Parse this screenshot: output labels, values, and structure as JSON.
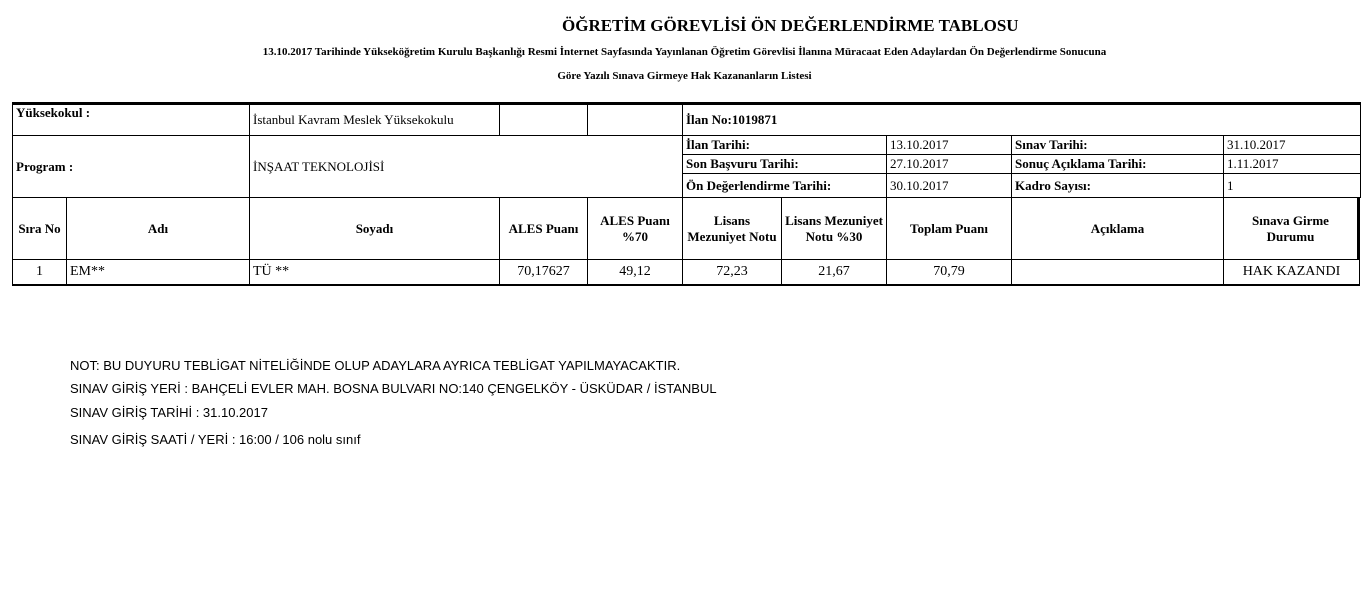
{
  "header": {
    "title": "ÖĞRETİM GÖREVLİSİ ÖN DEĞERLENDİRME TABLOSU",
    "subtitle1": "13.10.2017 Tarihinde Yükseköğretim Kurulu Başkanlığı Resmi İnternet Sayfasında Yayınlanan Öğretim Görevlisi İlanına Müracaat Eden Adaylardan Ön Değerlendirme Sonucuna",
    "subtitle2": "Göre Yazılı Sınava Girmeye Hak Kazananların Listesi"
  },
  "info": {
    "school_label": "Yüksekokul :",
    "school": "İstanbul Kavram Meslek Yüksekokulu",
    "ilan_no": "İlan No:1019871",
    "program_label": "Program :",
    "program": "İNŞAAT TEKNOLOJİSİ",
    "ilan_tarihi_label": "İlan Tarihi:",
    "ilan_tarihi": "13.10.2017",
    "sinav_tarihi_label": "Sınav Tarihi:",
    "sinav_tarihi": "31.10.2017",
    "son_basvuru_label": "Son Başvuru Tarihi:",
    "son_basvuru": "27.10.2017",
    "sonuc_label": "Sonuç Açıklama Tarihi:",
    "sonuc": "1.11.2017",
    "on_deg_label": "Ön Değerlendirme Tarihi:",
    "on_deg": "30.10.2017",
    "kadro_label": "Kadro Sayısı:",
    "kadro": "1"
  },
  "table": {
    "headers": [
      "Sıra No",
      "Adı",
      "Soyadı",
      "ALES Puanı",
      "ALES Puanı %70",
      "Lisans Mezuniyet Notu",
      "Lisans Mezuniyet Notu %30",
      "Toplam Puanı",
      "Açıklama",
      "Sınava Girme Durumu"
    ],
    "rows": [
      [
        "1",
        "EM**",
        "TÜ  **",
        "70,17627",
        "49,12",
        "72,23",
        "21,67",
        "70,79",
        "",
        "HAK KAZANDI"
      ]
    ]
  },
  "notes": [
    "NOT: BU DUYURU TEBLİGAT NİTELİĞİNDE OLUP ADAYLARA AYRICA TEBLİGAT YAPILMAYACAKTIR.",
    "SINAV GİRİŞ YERİ : BAHÇELİ EVLER MAH. BOSNA BULVARI NO:140 ÇENGELKÖY - ÜSKÜDAR / İSTANBUL",
    "SINAV GİRİŞ TARİHİ : 31.10.2017",
    "SINAV GİRİŞ SAATİ / YERİ :  16:00 / 106 nolu sınıf"
  ]
}
